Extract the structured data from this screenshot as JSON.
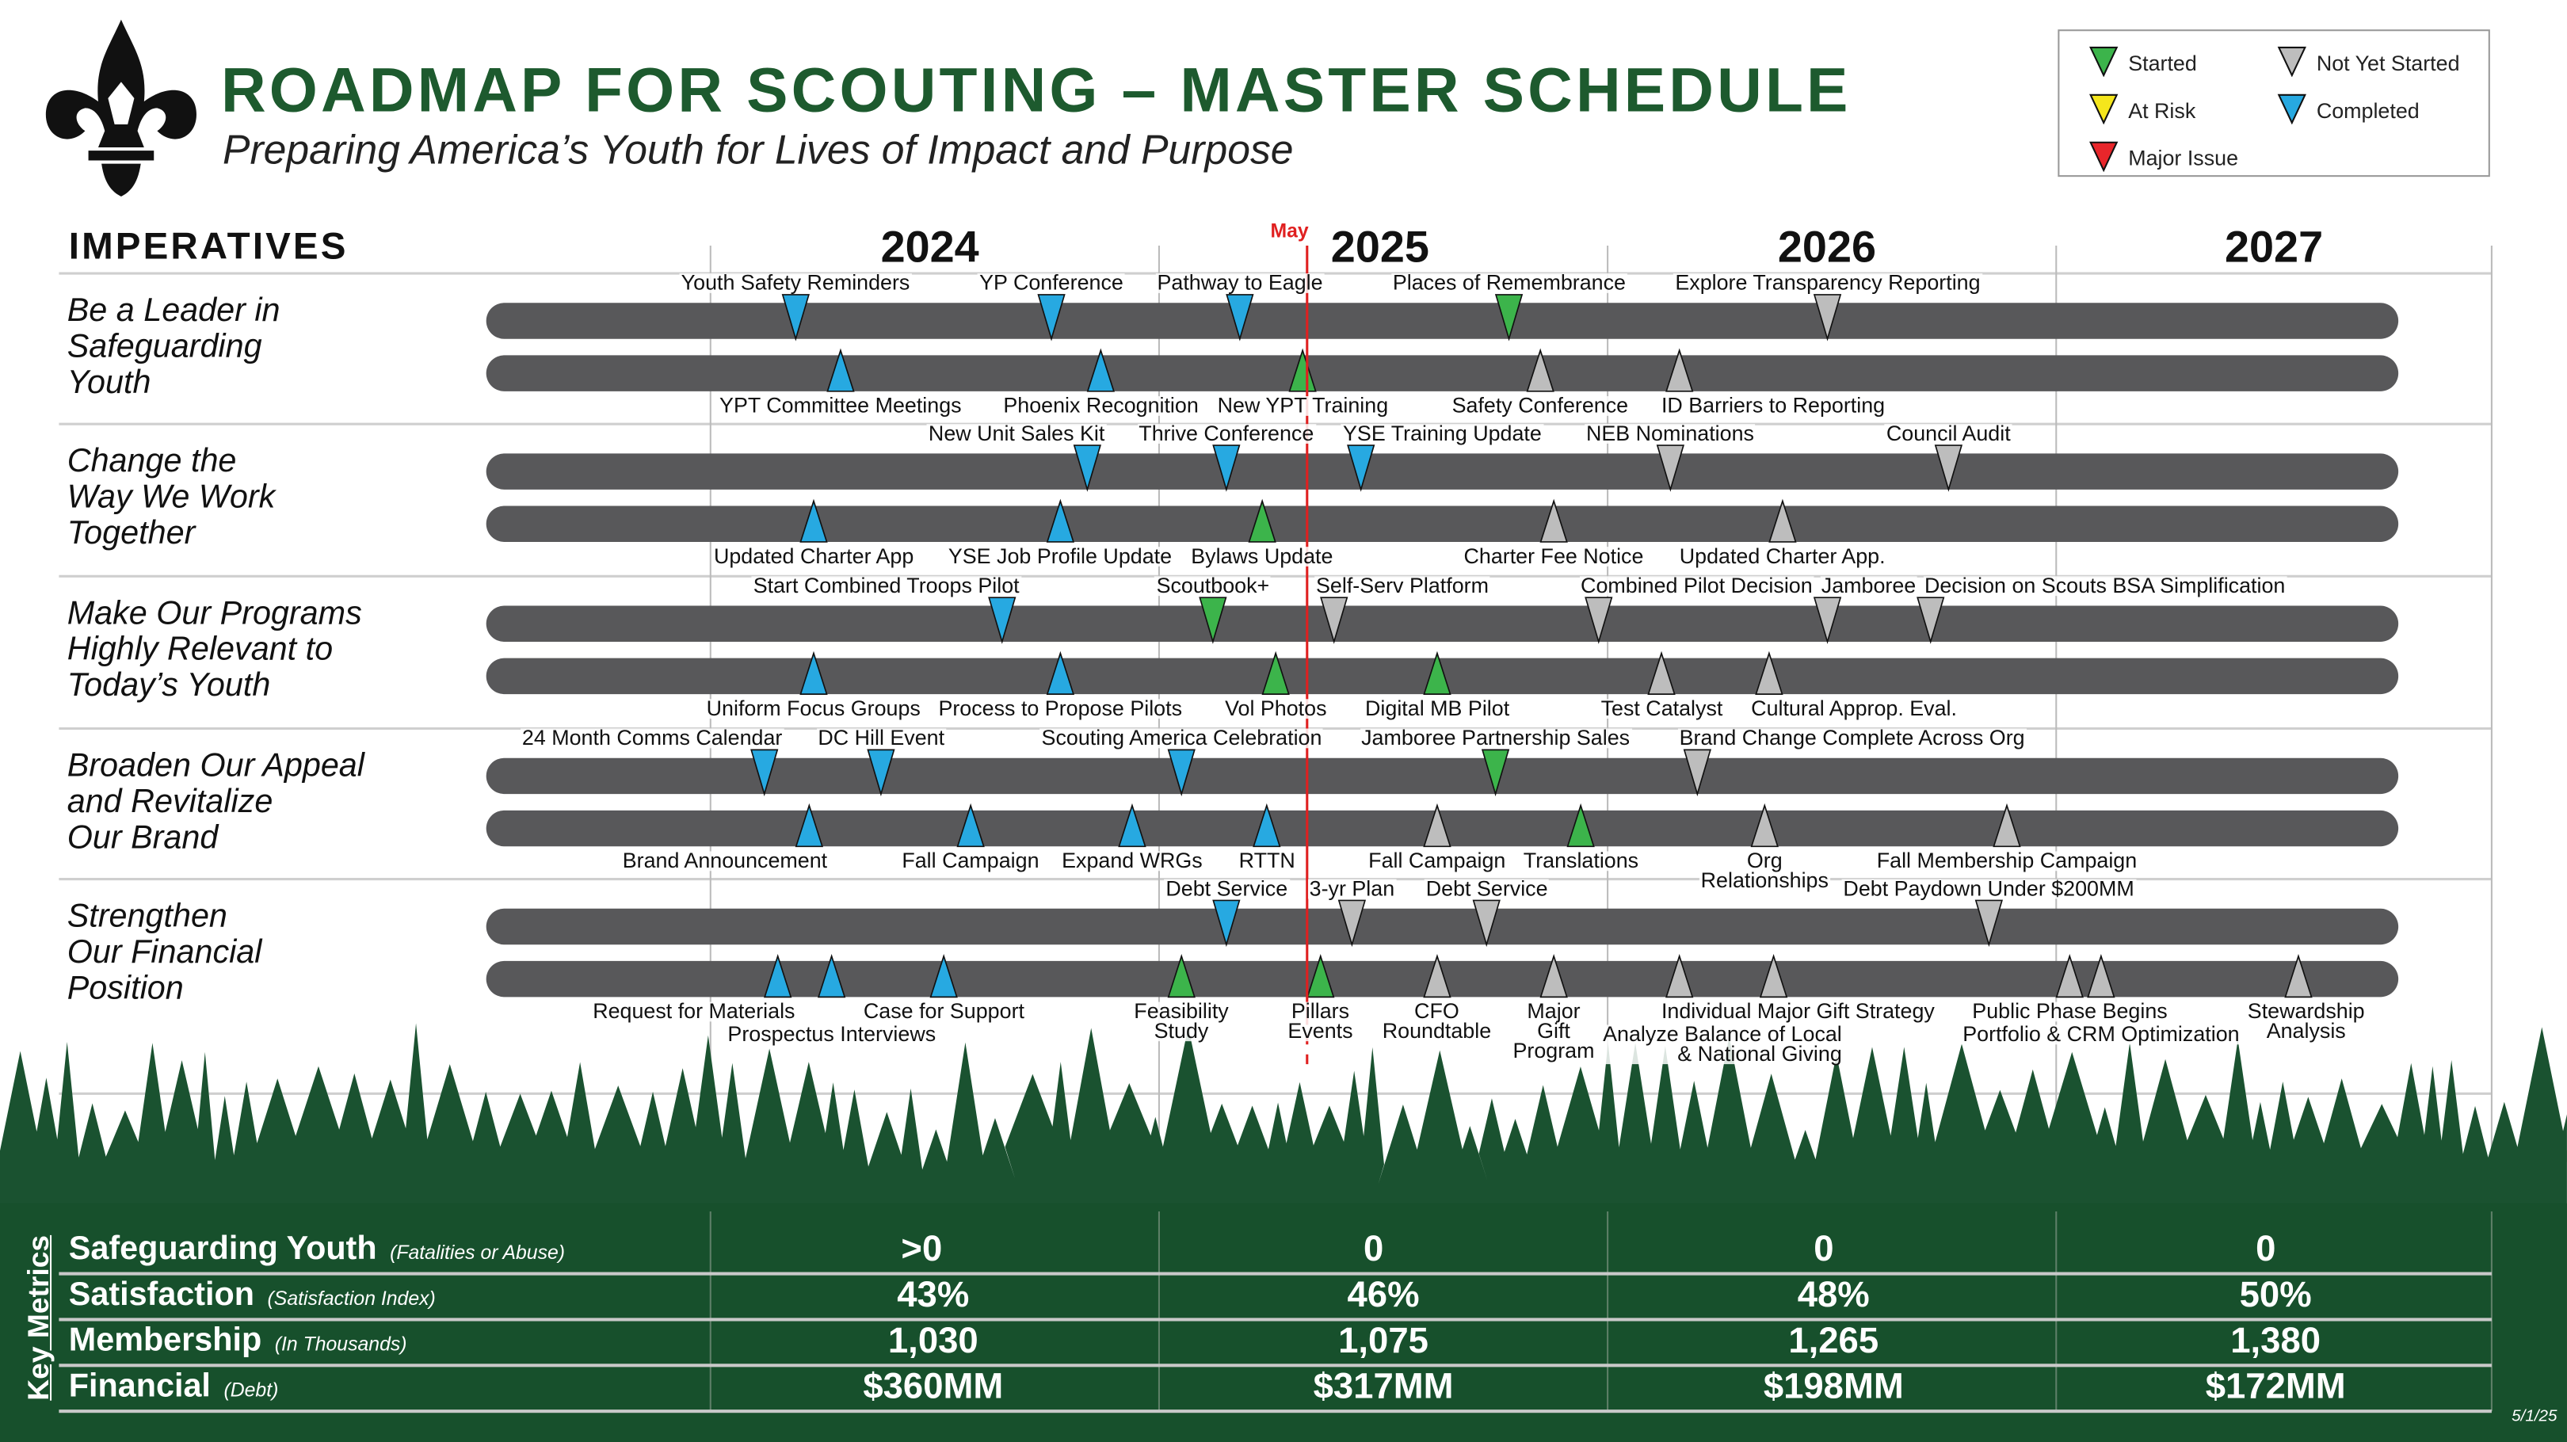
{
  "header": {
    "title": "ROADMAP FOR SCOUTING – MASTER SCHEDULE",
    "subtitle": "Preparing America’s Youth for Lives of Impact and Purpose",
    "logo_text": "BSA fleur-de-lis"
  },
  "legend": {
    "items": [
      {
        "label": "Started",
        "color": "#3cb44b"
      },
      {
        "label": "Not Yet Started",
        "color": "#bdbdbd"
      },
      {
        "label": "At Risk",
        "color": "#f5e61c"
      },
      {
        "label": "Completed",
        "color": "#27a9e1"
      },
      {
        "label": "Major Issue",
        "color": "#e8262b"
      }
    ]
  },
  "timeline": {
    "heading": "IMPERATIVES",
    "years": [
      "2024",
      "2025",
      "2026",
      "2027"
    ],
    "start_year": 2024,
    "current_marker_label": "May",
    "current_date": 2025.33
  },
  "status_colors": {
    "started": "#3cb44b",
    "not_started": "#bdbdbd",
    "at_risk": "#f5e61c",
    "completed": "#27a9e1",
    "major_issue": "#e8262b"
  },
  "imperatives": [
    {
      "title": "Be a Leader in\nSafeguarding\nYouth",
      "top": [
        {
          "label": "Youth Safety Reminders",
          "date": 2024.19,
          "status": "completed"
        },
        {
          "label": "YP Conference",
          "date": 2024.76,
          "status": "completed"
        },
        {
          "label": "Pathway to Eagle",
          "date": 2025.18,
          "status": "completed"
        },
        {
          "label": "Places of Remembrance",
          "date": 2025.78,
          "status": "started"
        },
        {
          "label": "Explore Transparency Reporting",
          "date": 2026.49,
          "status": "not_started"
        }
      ],
      "bottom": [
        {
          "label": "YPT Committee Meetings",
          "date": 2024.29,
          "status": "completed"
        },
        {
          "label": "Phoenix Recognition",
          "date": 2024.87,
          "status": "completed"
        },
        {
          "label": "New YPT Training",
          "date": 2025.32,
          "status": "started"
        },
        {
          "label": "Safety Conference",
          "date": 2025.85,
          "status": "not_started"
        },
        {
          "label": "ID Barriers to Reporting",
          "date": 2026.16,
          "status": "not_started",
          "align": "left"
        }
      ]
    },
    {
      "title": "Change the\nWay We Work\nTogether",
      "top": [
        {
          "label": "New Unit Sales Kit",
          "date": 2024.84,
          "status": "completed",
          "align": "right"
        },
        {
          "label": "Thrive Conference",
          "date": 2025.15,
          "status": "completed"
        },
        {
          "label": "YSE Training Update",
          "date": 2025.45,
          "status": "completed",
          "align": "left"
        },
        {
          "label": "NEB Nominations",
          "date": 2026.14,
          "status": "not_started"
        },
        {
          "label": "Council Audit",
          "date": 2026.76,
          "status": "not_started"
        }
      ],
      "bottom": [
        {
          "label": "Updated Charter App",
          "date": 2024.23,
          "status": "completed"
        },
        {
          "label": "YSE Job Profile Update",
          "date": 2024.78,
          "status": "completed"
        },
        {
          "label": "Bylaws Update",
          "date": 2025.23,
          "status": "started"
        },
        {
          "label": "Charter Fee Notice",
          "date": 2025.88,
          "status": "not_started"
        },
        {
          "label": "Updated Charter App.",
          "date": 2026.39,
          "status": "not_started"
        }
      ]
    },
    {
      "title": "Make Our Programs\nHighly Relevant to\nToday’s Youth",
      "top": [
        {
          "label": "Start Combined Troops Pilot",
          "date": 2024.65,
          "status": "completed",
          "align": "right"
        },
        {
          "label": "Scoutbook+",
          "date": 2025.12,
          "status": "started"
        },
        {
          "label": "Self-Serv Platform",
          "date": 2025.39,
          "status": "not_started",
          "align": "left"
        },
        {
          "label": "Combined Pilot Decision",
          "date": 2025.98,
          "status": "not_started",
          "align": "left"
        },
        {
          "label": "Jamboree",
          "date": 2026.49,
          "status": "not_started"
        },
        {
          "label": "Decision on Scouts BSA Simplification",
          "date": 2026.72,
          "status": "not_started",
          "align": "left"
        }
      ],
      "bottom": [
        {
          "label": "Uniform Focus Groups",
          "date": 2024.23,
          "status": "completed"
        },
        {
          "label": "Process to Propose Pilots",
          "date": 2024.78,
          "status": "completed"
        },
        {
          "label": "Vol Photos",
          "date": 2025.26,
          "status": "started"
        },
        {
          "label": "Digital MB Pilot",
          "date": 2025.62,
          "status": "started"
        },
        {
          "label": "Test Catalyst",
          "date": 2026.12,
          "status": "not_started"
        },
        {
          "label": "Cultural Approp. Eval.",
          "date": 2026.36,
          "status": "not_started",
          "align": "left"
        }
      ]
    },
    {
      "title": "Broaden Our Appeal\nand Revitalize\nOur Brand",
      "top": [
        {
          "label": "24 Month Comms Calendar",
          "date": 2024.12,
          "status": "completed",
          "align": "right"
        },
        {
          "label": "DC Hill Event",
          "date": 2024.38,
          "status": "completed"
        },
        {
          "label": "Scouting America Celebration",
          "date": 2025.05,
          "status": "completed"
        },
        {
          "label": "Jamboree Partnership Sales",
          "date": 2025.75,
          "status": "started"
        },
        {
          "label": "Brand Change Complete Across Org",
          "date": 2026.2,
          "status": "not_started",
          "align": "left"
        }
      ],
      "bottom": [
        {
          "label": "Brand Announcement",
          "date": 2024.22,
          "status": "completed",
          "align": "right"
        },
        {
          "label": "Fall Campaign",
          "date": 2024.58,
          "status": "completed"
        },
        {
          "label": "Expand WRGs",
          "date": 2024.94,
          "status": "completed"
        },
        {
          "label": "RTTN",
          "date": 2025.24,
          "status": "completed"
        },
        {
          "label": "Fall Campaign",
          "date": 2025.62,
          "status": "not_started"
        },
        {
          "label": "Translations",
          "date": 2025.94,
          "status": "started"
        },
        {
          "label": "Org\nRelationships",
          "date": 2026.35,
          "status": "not_started"
        },
        {
          "label": "Fall Membership Campaign",
          "date": 2026.89,
          "status": "not_started"
        }
      ]
    },
    {
      "title": "Strengthen\nOur Financial\nPosition",
      "top": [
        {
          "label": "Debt Service",
          "date": 2025.15,
          "status": "completed"
        },
        {
          "label": "3-yr Plan",
          "date": 2025.43,
          "status": "not_started"
        },
        {
          "label": "Debt Service",
          "date": 2025.73,
          "status": "not_started"
        },
        {
          "label": "Debt Paydown Under $200MM",
          "date": 2026.85,
          "status": "not_started"
        }
      ],
      "bottom": [
        {
          "label": "Request for Materials",
          "date": 2024.15,
          "status": "completed",
          "align": "right"
        },
        {
          "label": "Prospectus Interviews",
          "date": 2024.27,
          "status": "completed",
          "line": 2
        },
        {
          "label": "Case for Support",
          "date": 2024.52,
          "status": "completed"
        },
        {
          "label": "Feasibility\nStudy",
          "date": 2025.05,
          "status": "started"
        },
        {
          "label": "Pillars\nEvents",
          "date": 2025.36,
          "status": "started"
        },
        {
          "label": "CFO\nRoundtable",
          "date": 2025.62,
          "status": "not_started"
        },
        {
          "label": "Major\nGift\nProgram",
          "date": 2025.88,
          "status": "not_started"
        },
        {
          "label": "Individual Major Gift Strategy",
          "date": 2026.16,
          "status": "not_started",
          "align": "left"
        },
        {
          "label": "Analyze Balance of Local\n& National Giving",
          "date": 2026.37,
          "status": "not_started",
          "line": 2,
          "align": "right"
        },
        {
          "label": "Public Phase Begins",
          "date": 2027.03,
          "status": "not_started"
        },
        {
          "label": "Portfolio & CRM Optimization",
          "date": 2027.1,
          "status": "not_started",
          "line": 2
        },
        {
          "label": "Stewardship\nAnalysis",
          "date": 2027.54,
          "status": "not_started"
        }
      ]
    }
  ],
  "metrics": {
    "heading": "Key Metrics",
    "rows": [
      {
        "name": "Safeguarding Youth",
        "note": "(Fatalities or Abuse)",
        "values": [
          ">0",
          "0",
          "0",
          "0"
        ]
      },
      {
        "name": "Satisfaction",
        "note": "(Satisfaction Index)",
        "values": [
          "43%",
          "46%",
          "48%",
          "50%"
        ]
      },
      {
        "name": "Membership",
        "note": "(In Thousands)",
        "values": [
          "1,030",
          "1,075",
          "1,265",
          "1,380"
        ]
      },
      {
        "name": "Financial",
        "note": "(Debt)",
        "values": [
          "$360MM",
          "$317MM",
          "$198MM",
          "$172MM"
        ]
      }
    ]
  },
  "footer": {
    "date": "5/1/25"
  }
}
